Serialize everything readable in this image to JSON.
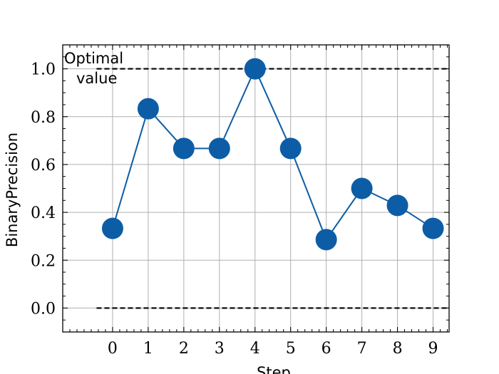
{
  "chart_data": {
    "type": "line",
    "xlabel": "Step",
    "ylabel": "BinaryPrecision",
    "xlim": [
      -1.4,
      9.45
    ],
    "ylim": [
      -0.1,
      1.1
    ],
    "x_ticks": [
      "0",
      "1",
      "2",
      "3",
      "4",
      "5",
      "6",
      "7",
      "8",
      "9"
    ],
    "y_ticks": [
      "0.0",
      "0.2",
      "0.4",
      "0.6",
      "0.8",
      "1.0"
    ],
    "grid": true,
    "series": [
      {
        "x": [
          0,
          1,
          2,
          3,
          4,
          5,
          6,
          7,
          8,
          9
        ],
        "values": [
          0.333,
          0.833,
          0.667,
          0.667,
          1.0,
          0.667,
          0.286,
          0.5,
          0.429,
          0.333
        ],
        "color": "#0C5DA5"
      }
    ],
    "reference_lines": [
      {
        "y": 1.0,
        "style": "dashed",
        "color": "#000000"
      },
      {
        "y": 0.0,
        "style": "dashed",
        "color": "#000000"
      }
    ],
    "annotations": [
      {
        "lines": [
          "Optimal",
          "value"
        ]
      }
    ]
  }
}
